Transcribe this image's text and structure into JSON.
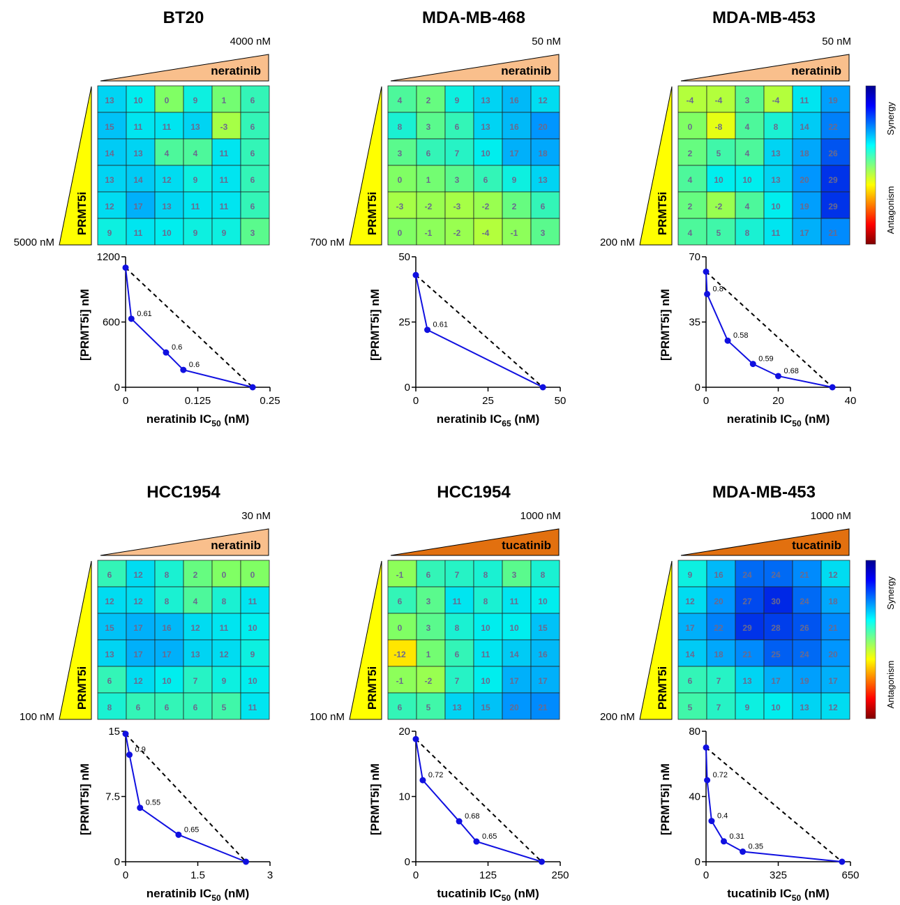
{
  "colorbar": {
    "top_label": "Synergy",
    "bottom_label": "Antagonism",
    "colors": [
      "#7f0000",
      "#ff0000",
      "#ff7f00",
      "#ffff00",
      "#7fff7f",
      "#00ffff",
      "#007fff",
      "#0000ff",
      "#00008f"
    ]
  },
  "colors": {
    "neratinib_wedge": "#f9bf8c",
    "tucatinib_wedge": "#e2700f",
    "prmt5i_wedge": "#ffff00",
    "isobologram_line": "#1010e0",
    "additivity_line": "#000000"
  },
  "chart_data": [
    {
      "type": "heatmap",
      "title": "BT20",
      "col_drug": "neratinib",
      "col_max": "4000 nM",
      "row_drug": "PRMT5i",
      "row_max": "5000 nM",
      "wedge": "neratinib",
      "values": [
        [
          13,
          10,
          0,
          9,
          1,
          6
        ],
        [
          15,
          11,
          11,
          13,
          -3,
          6
        ],
        [
          14,
          13,
          4,
          4,
          11,
          6
        ],
        [
          13,
          14,
          12,
          9,
          11,
          6
        ],
        [
          12,
          17,
          13,
          11,
          11,
          6
        ],
        [
          9,
          11,
          10,
          9,
          9,
          3
        ]
      ],
      "isobologram": {
        "type": "line",
        "xlabel": "neratinib IC",
        "xlabel_sub": "50",
        "xlabel_unit": " (nM)",
        "ylabel": "[PRMT5i] nM",
        "xlim": [
          0,
          0.25
        ],
        "ylim": [
          0,
          1200
        ],
        "xticks": [
          0,
          0.125,
          0.25
        ],
        "xtick_labels": [
          "0",
          "0.125",
          "0.25"
        ],
        "yticks": [
          0,
          600,
          1200
        ],
        "ytick_labels": [
          "0",
          "600",
          "1200"
        ],
        "points": [
          [
            0,
            1100
          ],
          [
            0.01,
            630
          ],
          [
            0.07,
            320
          ],
          [
            0.1,
            160
          ],
          [
            0.22,
            0
          ]
        ],
        "ci_labels": [
          "",
          "0.61",
          "0.6",
          "0.6",
          ""
        ]
      }
    },
    {
      "type": "heatmap",
      "title": "MDA-MB-468",
      "col_drug": "neratinib",
      "col_max": "50 nM",
      "row_drug": "PRMT5i",
      "row_max": "700 nM",
      "wedge": "neratinib",
      "values": [
        [
          4,
          2,
          9,
          13,
          16,
          12
        ],
        [
          8,
          3,
          6,
          13,
          16,
          20
        ],
        [
          3,
          6,
          7,
          10,
          17,
          18
        ],
        [
          0,
          1,
          3,
          6,
          9,
          13
        ],
        [
          -3,
          -2,
          -3,
          -2,
          2,
          6
        ],
        [
          0,
          -1,
          -2,
          -4,
          -1,
          3
        ]
      ],
      "isobologram": {
        "type": "line",
        "xlabel": "neratinib IC",
        "xlabel_sub": "65",
        "xlabel_unit": " (nM)",
        "ylabel": "[PRMT5i] nM",
        "xlim": [
          0,
          50
        ],
        "ylim": [
          0,
          50
        ],
        "xticks": [
          0,
          25,
          50
        ],
        "xtick_labels": [
          "0",
          "25",
          "50"
        ],
        "yticks": [
          0,
          25,
          50
        ],
        "ytick_labels": [
          "0",
          "25",
          "50"
        ],
        "points": [
          [
            0,
            43
          ],
          [
            4,
            22
          ],
          [
            44,
            0
          ]
        ],
        "ci_labels": [
          "",
          "0.61",
          ""
        ]
      }
    },
    {
      "type": "heatmap",
      "title": "MDA-MB-453",
      "col_drug": "neratinib",
      "col_max": "50 nM",
      "row_drug": "PRMT5i",
      "row_max": "200 nM",
      "wedge": "neratinib",
      "values": [
        [
          -4,
          -4,
          3,
          -4,
          11,
          19
        ],
        [
          0,
          -8,
          4,
          8,
          14,
          22
        ],
        [
          2,
          5,
          4,
          13,
          18,
          26
        ],
        [
          4,
          10,
          10,
          13,
          20,
          29
        ],
        [
          2,
          -2,
          4,
          10,
          19,
          29
        ],
        [
          4,
          5,
          8,
          11,
          17,
          21
        ]
      ],
      "isobologram": {
        "type": "line",
        "xlabel": "neratinib IC",
        "xlabel_sub": "50",
        "xlabel_unit": " (nM)",
        "ylabel": "[PRMT5i] nM",
        "xlim": [
          0,
          40
        ],
        "ylim": [
          0,
          70
        ],
        "xticks": [
          0,
          20,
          40
        ],
        "xtick_labels": [
          "0",
          "20",
          "40"
        ],
        "yticks": [
          0,
          35,
          70
        ],
        "ytick_labels": [
          "0",
          "35",
          "70"
        ],
        "points": [
          [
            0,
            62
          ],
          [
            0.3,
            50
          ],
          [
            6,
            25
          ],
          [
            13,
            12.5
          ],
          [
            20,
            6
          ],
          [
            35,
            0
          ]
        ],
        "ci_labels": [
          "",
          "0.8",
          "0.58",
          "0.59",
          "0.68",
          ""
        ]
      }
    },
    {
      "type": "heatmap",
      "title": "HCC1954",
      "col_drug": "neratinib",
      "col_max": "30 nM",
      "row_drug": "PRMT5i",
      "row_max": "100 nM",
      "wedge": "neratinib",
      "values": [
        [
          6,
          12,
          8,
          2,
          0,
          0
        ],
        [
          12,
          12,
          8,
          4,
          8,
          11
        ],
        [
          15,
          17,
          16,
          12,
          11,
          10
        ],
        [
          13,
          17,
          17,
          13,
          12,
          9
        ],
        [
          6,
          12,
          10,
          7,
          9,
          10
        ],
        [
          8,
          6,
          6,
          6,
          5,
          11
        ]
      ],
      "isobologram": {
        "type": "line",
        "xlabel": "neratinib IC",
        "xlabel_sub": "50",
        "xlabel_unit": " (nM)",
        "ylabel": "[PRMT5i] nM",
        "xlim": [
          0,
          3
        ],
        "ylim": [
          0,
          15
        ],
        "xticks": [
          0,
          1.5,
          3
        ],
        "xtick_labels": [
          "0",
          "1.5",
          "3"
        ],
        "yticks": [
          0,
          7.5,
          15
        ],
        "ytick_labels": [
          "0",
          "7.5",
          "15"
        ],
        "points": [
          [
            0,
            14.7
          ],
          [
            0.08,
            12.3
          ],
          [
            0.3,
            6.2
          ],
          [
            1.1,
            3.1
          ],
          [
            2.5,
            0
          ]
        ],
        "ci_labels": [
          "",
          "0.9",
          "0.55",
          "0.65",
          ""
        ]
      }
    },
    {
      "type": "heatmap",
      "title": "HCC1954",
      "col_drug": "tucatinib",
      "col_max": "1000 nM",
      "row_drug": "PRMT5i",
      "row_max": "100 nM",
      "wedge": "tucatinib",
      "values": [
        [
          -1,
          6,
          7,
          8,
          3,
          8
        ],
        [
          6,
          3,
          11,
          8,
          11,
          10
        ],
        [
          0,
          3,
          8,
          10,
          10,
          15
        ],
        [
          -12,
          1,
          6,
          11,
          14,
          16
        ],
        [
          -1,
          -2,
          7,
          10,
          17,
          17
        ],
        [
          6,
          5,
          13,
          15,
          20,
          21
        ]
      ],
      "isobologram": {
        "type": "line",
        "xlabel": "tucatinib IC",
        "xlabel_sub": "50",
        "xlabel_unit": " (nM)",
        "ylabel": "[PRMT5i] nM",
        "xlim": [
          0,
          250
        ],
        "ylim": [
          0,
          20
        ],
        "xticks": [
          0,
          125,
          250
        ],
        "xtick_labels": [
          "0",
          "125",
          "250"
        ],
        "yticks": [
          0,
          10,
          20
        ],
        "ytick_labels": [
          "0",
          "10",
          "20"
        ],
        "points": [
          [
            0,
            18.8
          ],
          [
            12,
            12.5
          ],
          [
            75,
            6.2
          ],
          [
            105,
            3.1
          ],
          [
            218,
            0
          ]
        ],
        "ci_labels": [
          "",
          "0.72",
          "0.68",
          "0.65",
          ""
        ]
      }
    },
    {
      "type": "heatmap",
      "title": "MDA-MB-453",
      "col_drug": "tucatinib",
      "col_max": "1000 nM",
      "row_drug": "PRMT5i",
      "row_max": "200 nM",
      "wedge": "tucatinib",
      "values": [
        [
          9,
          16,
          24,
          24,
          21,
          12
        ],
        [
          12,
          20,
          27,
          30,
          24,
          18
        ],
        [
          17,
          22,
          29,
          28,
          26,
          21
        ],
        [
          14,
          18,
          21,
          25,
          24,
          20
        ],
        [
          6,
          7,
          13,
          17,
          19,
          17
        ],
        [
          5,
          7,
          9,
          10,
          13,
          12
        ]
      ],
      "isobologram": {
        "type": "line",
        "xlabel": "tucatinib IC",
        "xlabel_sub": "50",
        "xlabel_unit": " (nM)",
        "ylabel": "[PRMT5i] nM",
        "xlim": [
          0,
          650
        ],
        "ylim": [
          0,
          80
        ],
        "xticks": [
          0,
          325,
          650
        ],
        "xtick_labels": [
          "0",
          "325",
          "650"
        ],
        "yticks": [
          0,
          40,
          80
        ],
        "ytick_labels": [
          "0",
          "40",
          "80"
        ],
        "points": [
          [
            0,
            70
          ],
          [
            5,
            50
          ],
          [
            25,
            25
          ],
          [
            80,
            12.5
          ],
          [
            165,
            6.2
          ],
          [
            612,
            0
          ]
        ],
        "ci_labels": [
          "",
          "0.72",
          "0.4",
          "0.31",
          "0.35",
          ""
        ]
      }
    }
  ]
}
